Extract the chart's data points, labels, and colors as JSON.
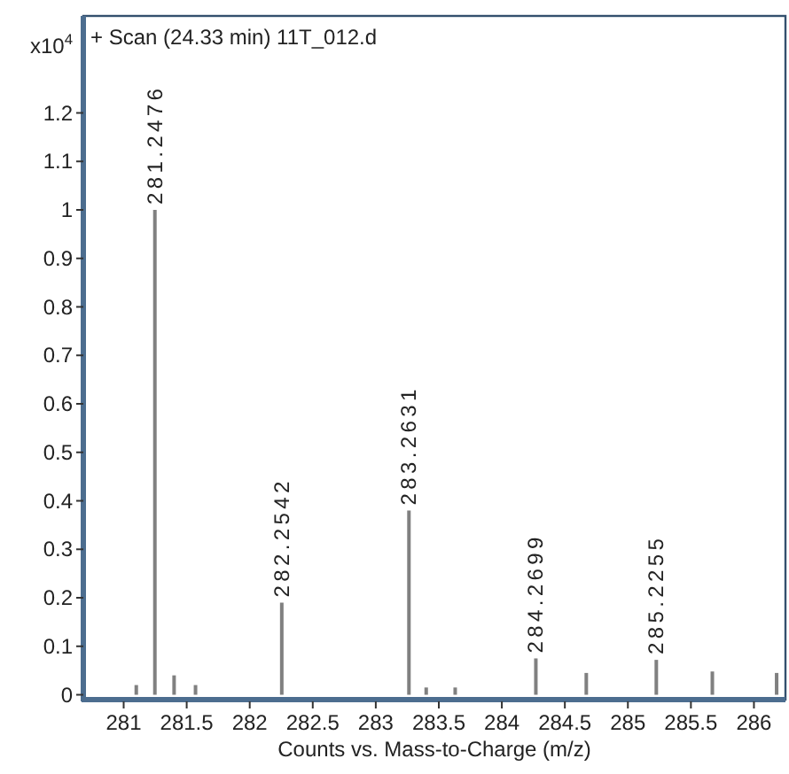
{
  "chart_data": {
    "type": "bar",
    "title": "+ Scan (24.33 min) 11T_012.d",
    "xlabel": "Counts vs. Mass-to-Charge (m/z)",
    "ylabel": "x10$^{4}$",
    "x": [
      281.1,
      281.2476,
      281.4,
      281.57,
      282.2542,
      283.2631,
      283.4,
      283.63,
      284.2699,
      284.67,
      285.2255,
      285.67,
      286.18
    ],
    "values": [
      0.02,
      1.0,
      0.04,
      0.02,
      0.19,
      0.38,
      0.015,
      0.015,
      0.075,
      0.045,
      0.072,
      0.048,
      0.045
    ],
    "color": "#808080",
    "xlim": [
      280.68,
      286.25
    ],
    "xticks": [
      281,
      281.5,
      282,
      282.5,
      283,
      283.5,
      284,
      284.5,
      285,
      285.5,
      286
    ],
    "ylim": [
      -0.01,
      1.4
    ],
    "yticks": [
      0,
      0.1,
      0.2,
      0.3,
      0.4,
      0.5,
      0.6,
      0.7,
      0.8,
      0.9,
      1,
      1.1,
      1.2
    ],
    "annotations": [
      {
        "text": "281.2476",
        "x": 281.2476,
        "y": 1.0
      },
      {
        "text": "282.2542",
        "x": 282.2542,
        "y": 0.19
      },
      {
        "text": "283.2631",
        "x": 283.2631,
        "y": 0.38
      },
      {
        "text": "284.2699",
        "x": 284.2699,
        "y": 0.075
      },
      {
        "text": "285.2255",
        "x": 285.2255,
        "y": 0.072
      }
    ]
  }
}
